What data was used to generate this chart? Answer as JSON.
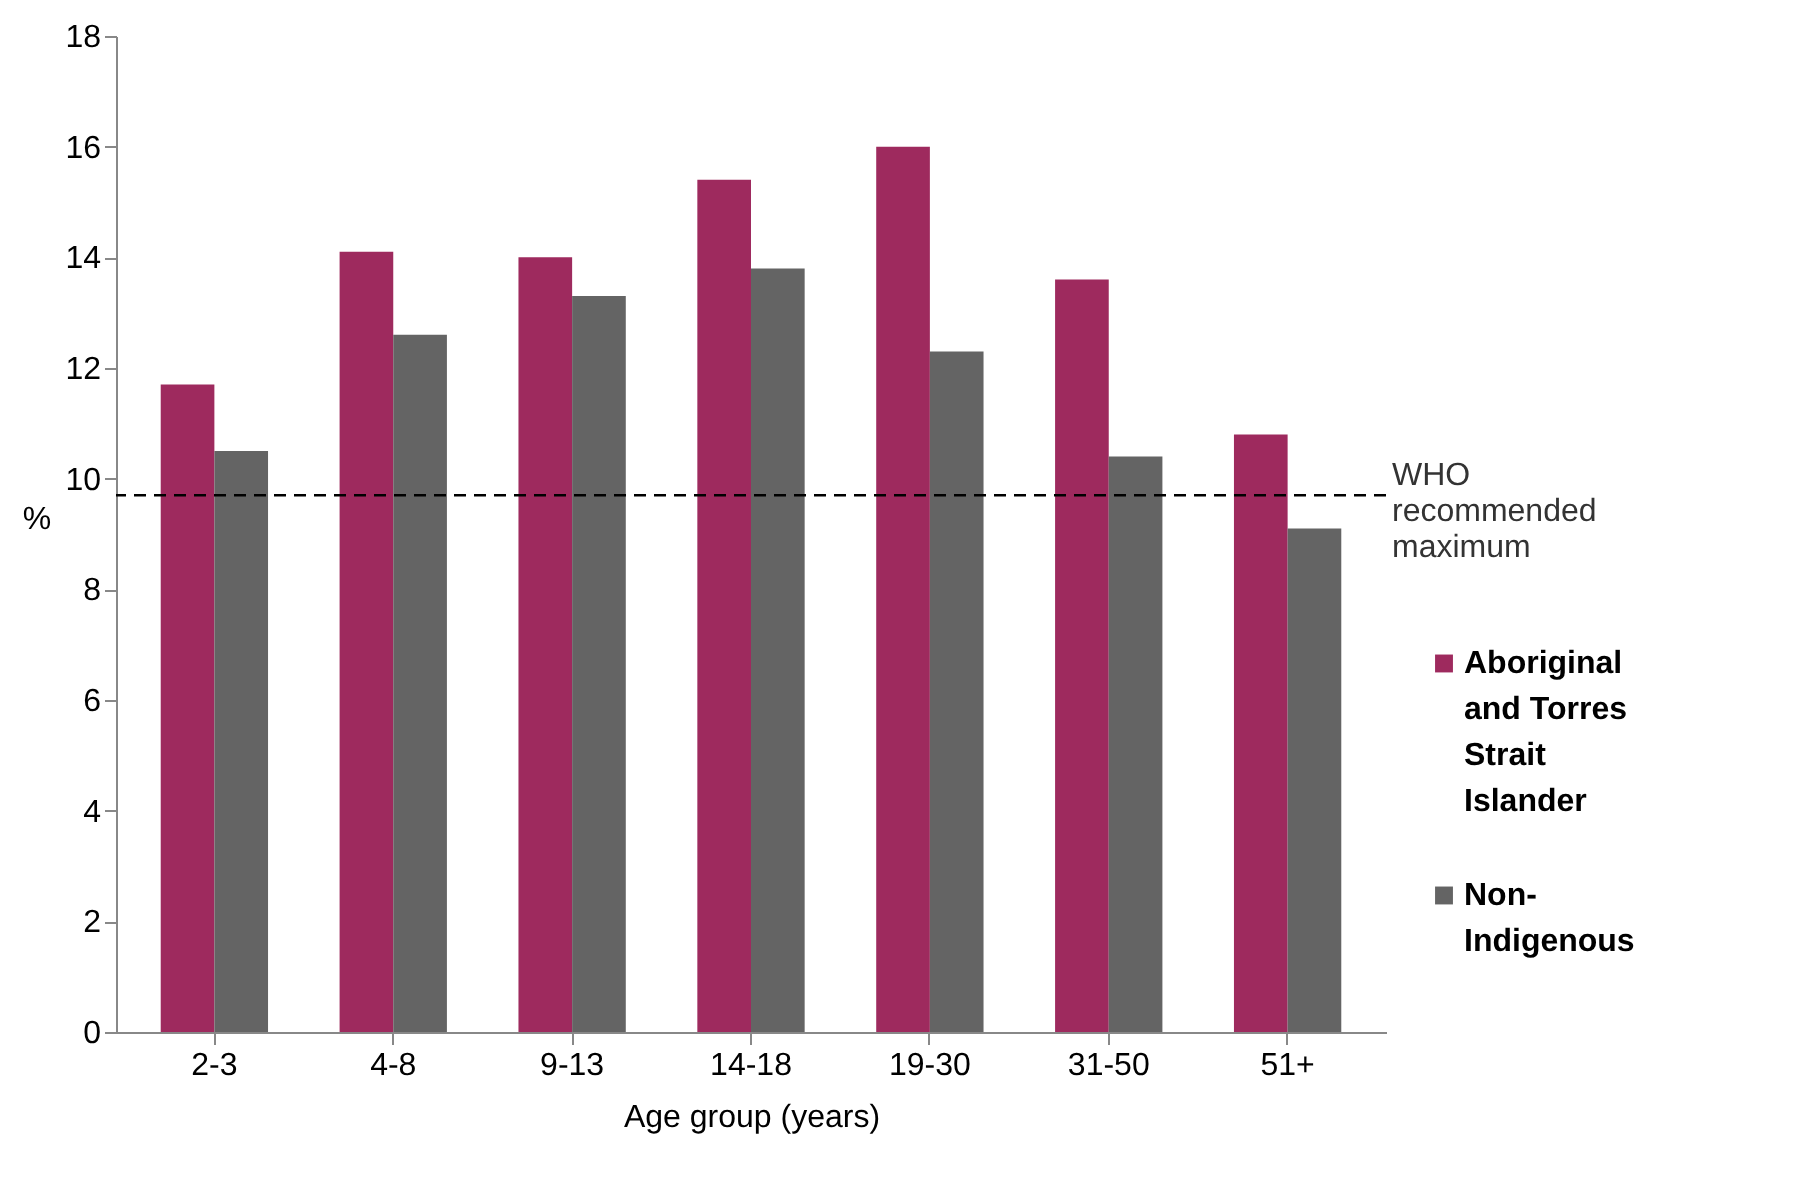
{
  "chart_data": {
    "type": "bar",
    "xlabel": "Age group (years)",
    "ylabel": "%",
    "categories": [
      "2-3",
      "4-8",
      "9-13",
      "14-18",
      "19-30",
      "31-50",
      "51+"
    ],
    "series": [
      {
        "name": "Aboriginal and Torres Strait Islander",
        "color": "#9e2a5e",
        "values": [
          11.7,
          14.1,
          14.0,
          15.4,
          16.0,
          13.6,
          10.8
        ]
      },
      {
        "name": "Non-Indigenous",
        "color": "#646464",
        "values": [
          10.5,
          12.6,
          13.3,
          13.8,
          12.3,
          10.4,
          9.1
        ]
      }
    ],
    "ylim": [
      0,
      18
    ],
    "yticks": [
      0,
      2,
      4,
      6,
      8,
      10,
      12,
      14,
      16,
      18
    ],
    "grid": false,
    "legend": "right",
    "ref_lines": [
      {
        "axis": "y",
        "value": 9.7,
        "label": "WHO recommended maximum",
        "color": "#000000",
        "line_style": "dashed"
      }
    ]
  }
}
